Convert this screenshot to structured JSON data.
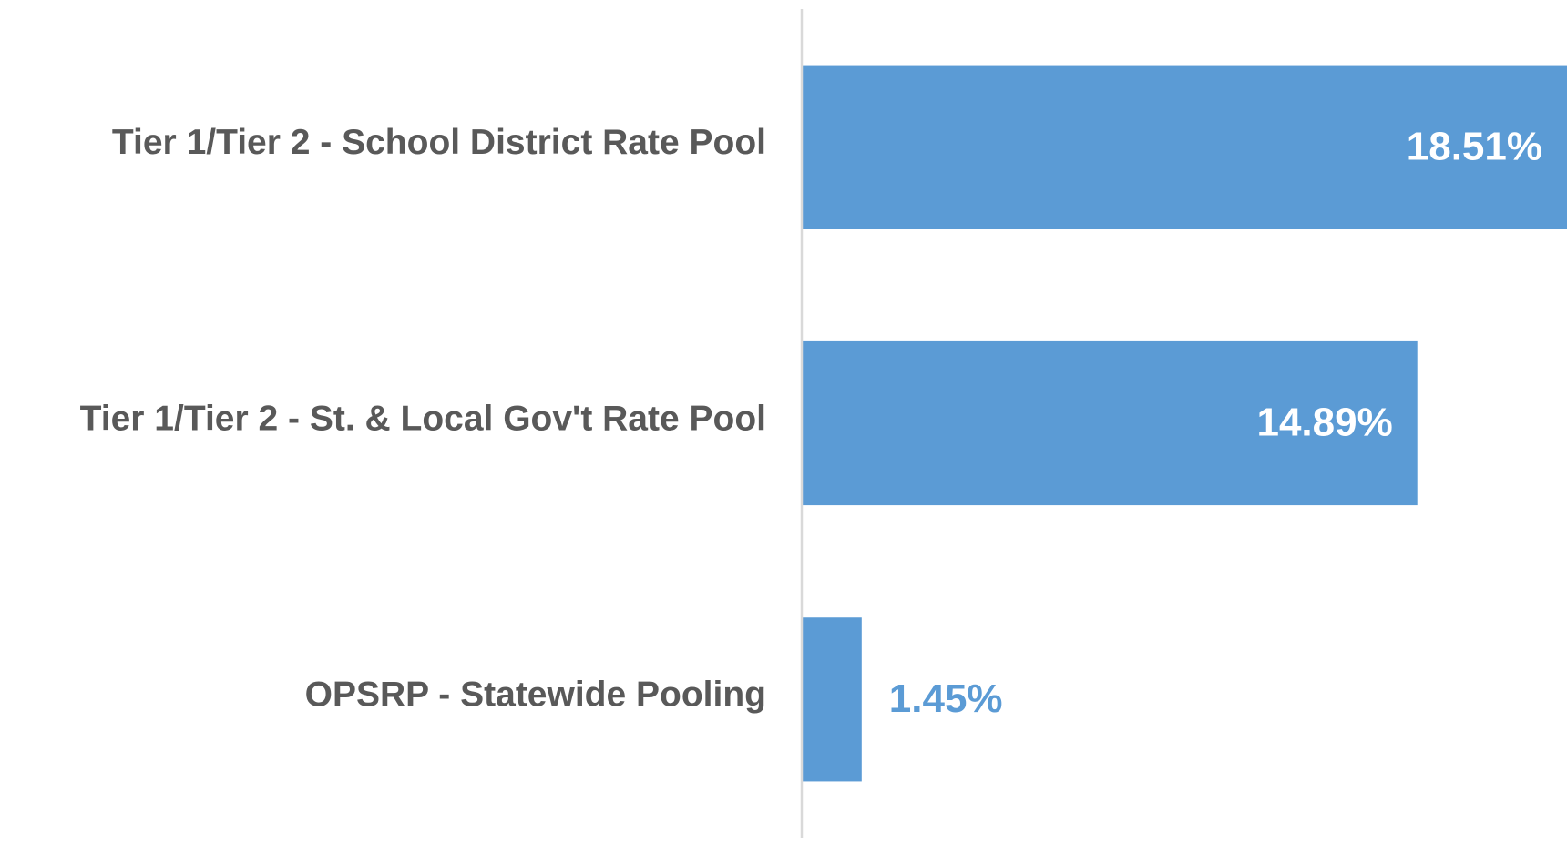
{
  "chart_data": {
    "type": "bar",
    "orientation": "horizontal",
    "categories": [
      "Tier 1/Tier 2 - School District Rate Pool",
      "Tier 1/Tier 2 - St. & Local Gov't Rate Pool",
      "OPSRP - Statewide Pooling"
    ],
    "values": [
      18.51,
      14.89,
      1.45
    ],
    "value_labels": [
      "18.51%",
      "14.89%",
      "1.45%"
    ],
    "color": "#5b9bd5",
    "xlim": [
      0,
      18.51
    ]
  }
}
